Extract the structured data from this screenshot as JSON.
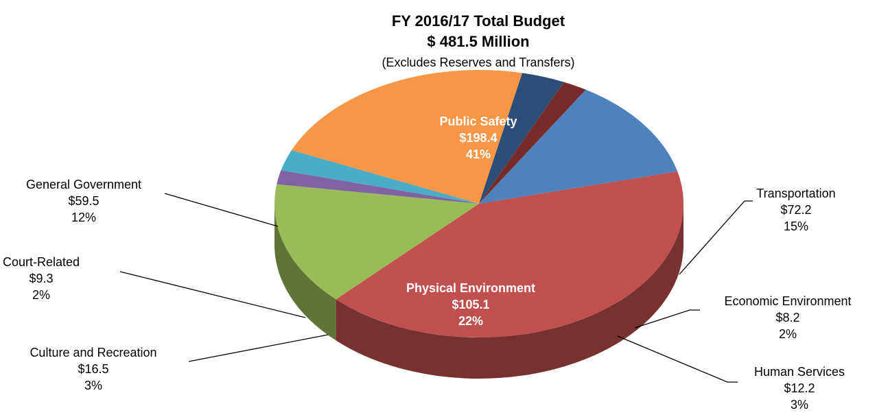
{
  "chart_data": {
    "type": "pie3d",
    "title": "FY 2016/17 Total Budget",
    "subtitle": "$ 481.5 Million",
    "note": "(Excludes Reserves and Transfers)",
    "categories": [
      "Public Safety",
      "Transportation",
      "Economic Environment",
      "Human Services",
      "Physical Environment",
      "Culture and Recreation",
      "Court-Related",
      "General Government"
    ],
    "values": [
      198.4,
      72.2,
      8.2,
      12.2,
      105.1,
      16.5,
      9.3,
      59.5
    ],
    "value_labels": [
      "$198.4",
      "$72.2",
      "$8.2",
      "$12.2",
      "$105.1",
      "$16.5",
      "$9.3",
      "$59.5"
    ],
    "percents": [
      41,
      15,
      2,
      3,
      22,
      3,
      2,
      12
    ],
    "percent_labels": [
      "41%",
      "15%",
      "2%",
      "3%",
      "22%",
      "3%",
      "2%",
      "12%"
    ],
    "colors": [
      "#c0504d",
      "#9bbb59",
      "#8064a2",
      "#4bacc6",
      "#f79646",
      "#2c4d75",
      "#772c2a",
      "#4f81bd"
    ]
  }
}
